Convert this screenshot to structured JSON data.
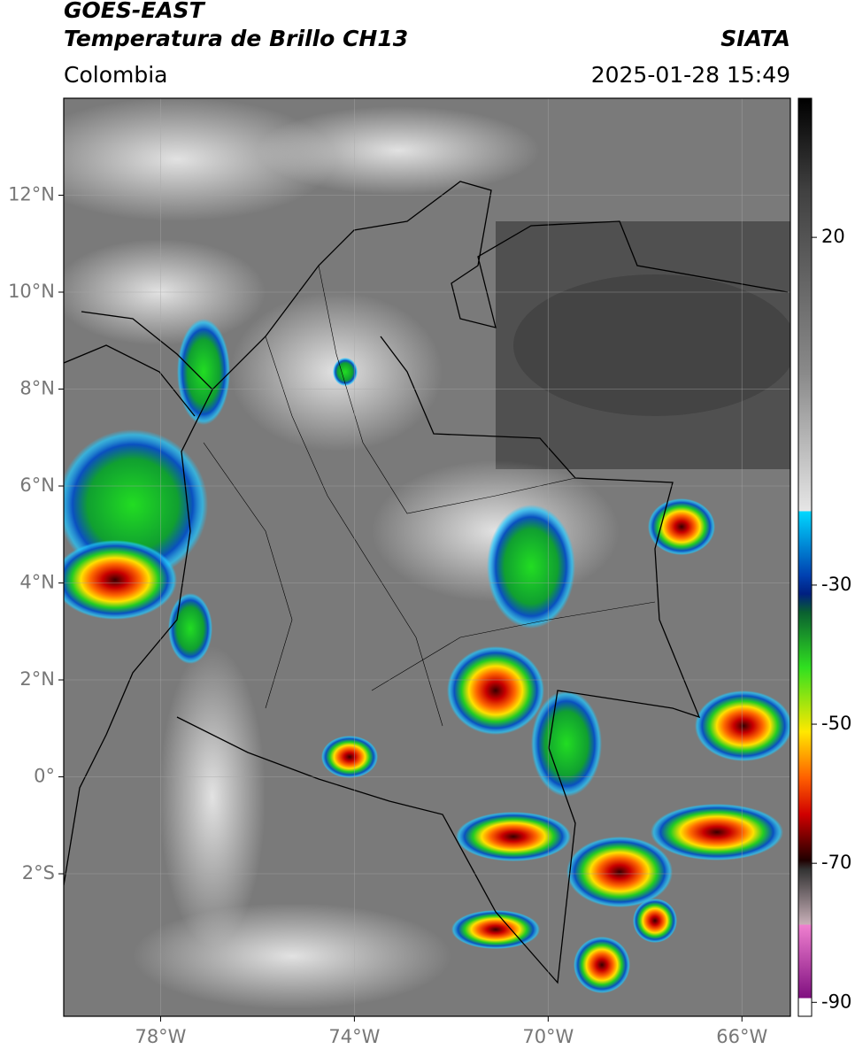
{
  "header": {
    "satellite": "GOES-EAST",
    "product": "Temperatura de Brillo CH13",
    "source": "SIATA",
    "region": "Colombia",
    "datetime": "2025-01-28 15:49"
  },
  "map": {
    "xlim": [
      -80,
      -65
    ],
    "ylim": [
      -4.94,
      14
    ],
    "xticks": [
      {
        "value": -78,
        "label": "78°W"
      },
      {
        "value": -74,
        "label": "74°W"
      },
      {
        "value": -70,
        "label": "70°W"
      },
      {
        "value": -66,
        "label": "66°W"
      }
    ],
    "yticks": [
      {
        "value": 12,
        "label": "12°N"
      },
      {
        "value": 10,
        "label": "10°N"
      },
      {
        "value": 8,
        "label": "8°N"
      },
      {
        "value": 6,
        "label": "6°N"
      },
      {
        "value": 4,
        "label": "4°N"
      },
      {
        "value": 2,
        "label": "2°N"
      },
      {
        "value": 0,
        "label": "0°"
      },
      {
        "value": -2,
        "label": "2°S"
      }
    ],
    "grid": true
  },
  "colorbar": {
    "lim": [
      -92,
      40
    ],
    "ticks": [
      20,
      -30,
      -50,
      -70,
      -90
    ]
  }
}
